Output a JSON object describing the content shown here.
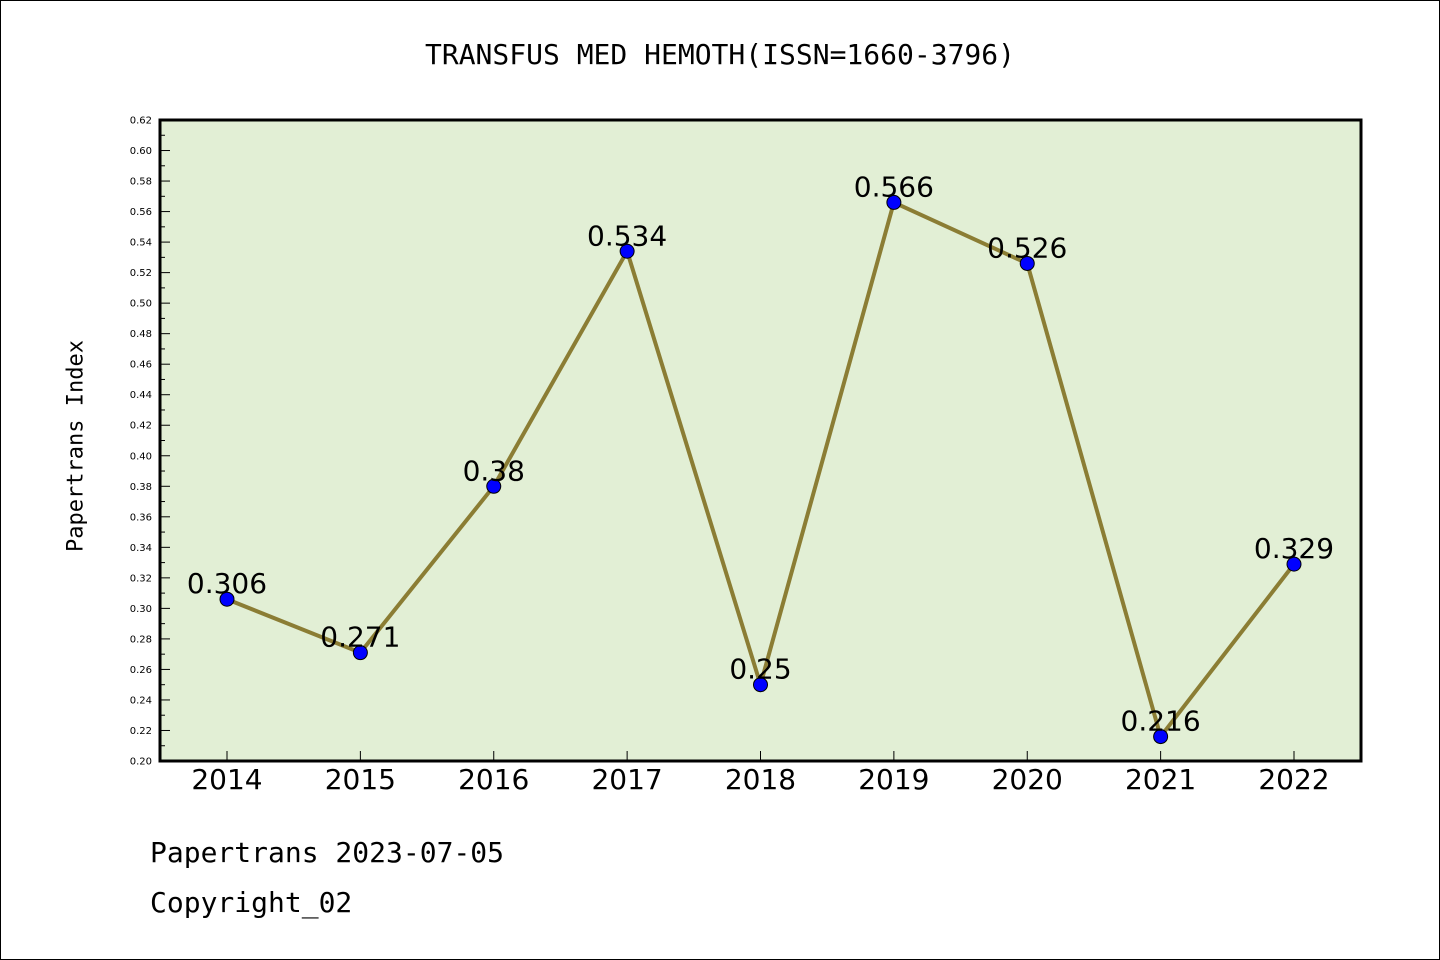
{
  "chart_data": {
    "type": "line",
    "title": "TRANSFUS MED HEMOTH(ISSN=1660-3796)",
    "ylabel": "Papertrans Index",
    "xlabel": "",
    "categories": [
      "2014",
      "2015",
      "2016",
      "2017",
      "2018",
      "2019",
      "2020",
      "2021",
      "2022"
    ],
    "series": [
      {
        "values": [
          0.306,
          0.271,
          0.38,
          0.534,
          0.25,
          0.566,
          0.526,
          0.216,
          0.329
        ]
      }
    ],
    "data_labels": [
      "0.306",
      "0.271",
      "0.38",
      "0.534",
      "0.25",
      "0.566",
      "0.526",
      "0.216",
      "0.329"
    ],
    "ylim": [
      0.2,
      0.62
    ],
    "ytick_step": 0.02,
    "grid": false,
    "colors": {
      "plot_background": "#e2efd5",
      "line": "#8b7d34",
      "marker": "#0000ff"
    }
  },
  "footer": {
    "line1": "Papertrans 2023-07-05",
    "line2": "Copyright_02"
  }
}
